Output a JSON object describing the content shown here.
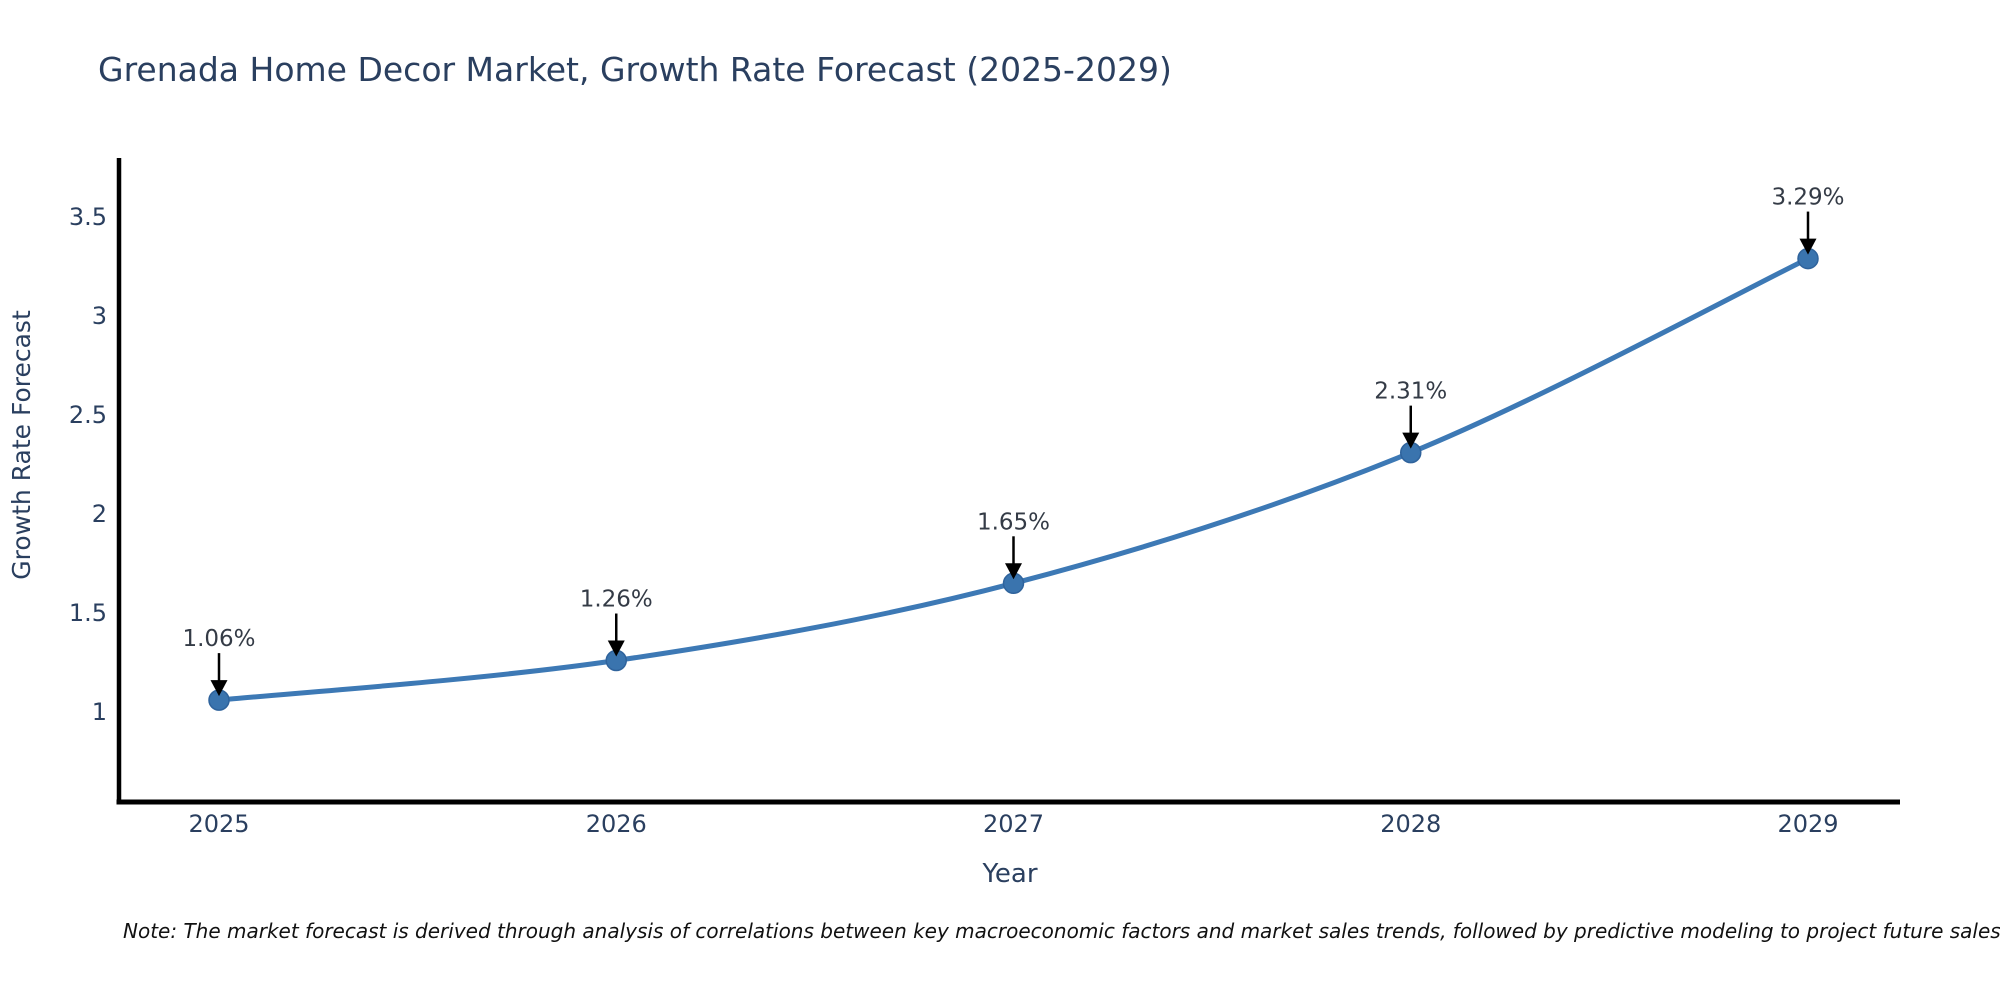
{
  "title": "Grenada Home Decor Market, Growth Rate Forecast (2025-2029)",
  "note": "Note: The market forecast is derived through analysis of correlations between key macroeconomic factors and market sales trends, followed by predictive modeling to project future sales",
  "chart_data": {
    "type": "line",
    "title": "Grenada Home Decor Market, Growth Rate Forecast (2025-2029)",
    "x": [
      2025,
      2026,
      2027,
      2028,
      2029
    ],
    "series": [
      {
        "name": "Growth Rate Forecast",
        "values": [
          1.06,
          1.26,
          1.65,
          2.31,
          3.29
        ]
      }
    ],
    "point_labels": [
      "1.06%",
      "1.26%",
      "1.65%",
      "2.31%",
      "3.29%"
    ],
    "xlabel": "Year",
    "ylabel": "Growth Rate Forecast",
    "xticks": [
      "2025",
      "2026",
      "2027",
      "2028",
      "2029"
    ],
    "yticks": [
      1,
      1.5,
      2,
      2.5,
      3,
      3.5
    ],
    "ylim": [
      0.55,
      3.78
    ],
    "xlim": [
      2024.75,
      2029.23
    ],
    "line_shape": "spline",
    "grid": false,
    "legend": "none",
    "markers": true,
    "annotation_style": "value label above point with black arrow pointing down to marker"
  },
  "colors": {
    "line": "#3d79b5",
    "marker": "#3a74ae",
    "marker_edge": "#2f639c",
    "axis": "#000000",
    "text": "#2a3f5f",
    "annotation_text": "#343b46",
    "arrow": "#000000",
    "note_text": "#111111",
    "background": "#ffffff"
  }
}
